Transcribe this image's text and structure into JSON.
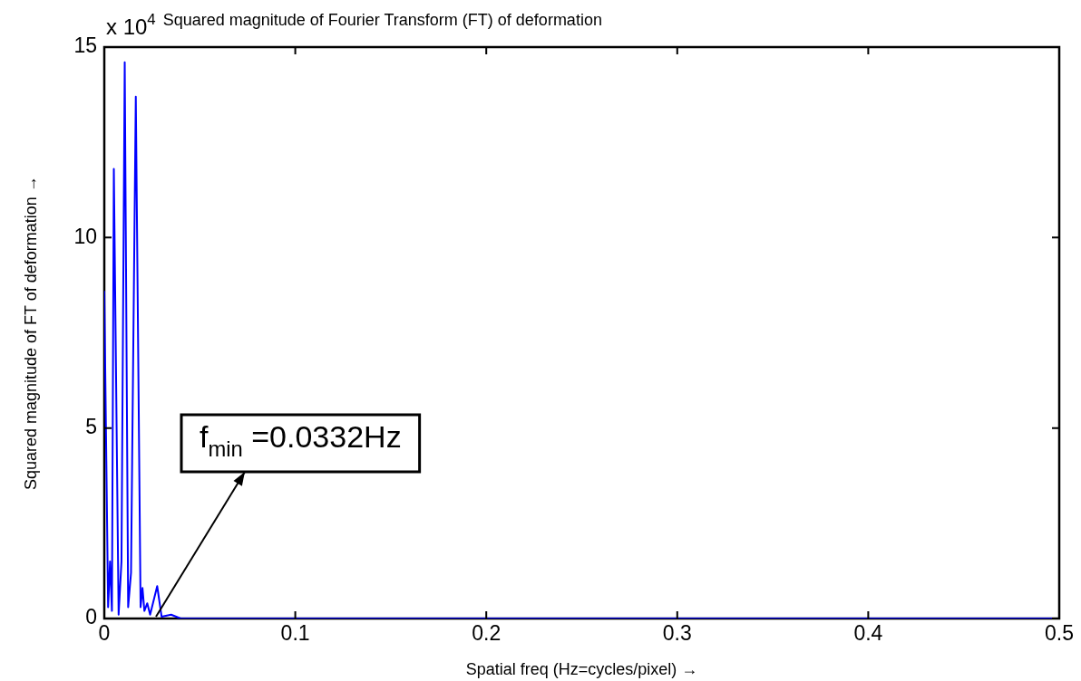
{
  "chart_data": {
    "type": "line",
    "title": "Squared magnitude of Fourier Transform (FT) of deformation",
    "xlabel": "Spatial freq (Hz=cycles/pixel) →",
    "ylabel": "Squared magnitude of FT of deformation →",
    "annotations": [
      "x 10$^{4}$",
      "f$_{min}$ =0.0332Hz"
    ],
    "x": [
      0,
      0.002,
      0.003,
      0.004,
      0.005,
      0.0075,
      0.009,
      0.0107,
      0.0125,
      0.014,
      0.0165,
      0.019,
      0.02,
      0.021,
      0.0225,
      0.024,
      0.0277,
      0.03,
      0.035,
      0.04,
      0.5
    ],
    "series": [
      {
        "color": "#0000ff",
        "values": [
          8.6,
          0.3,
          1.5,
          0.2,
          11.8,
          0.1,
          1.5,
          14.6,
          0.3,
          1.2,
          13.7,
          0.3,
          0.8,
          0.2,
          0.4,
          0.1,
          0.85,
          0.05,
          0.1,
          0,
          0
        ]
      }
    ],
    "xlim": [
      0,
      0.5
    ],
    "xticks": [
      0,
      0.1,
      0.2,
      0.3,
      0.4,
      0.5
    ],
    "ylim": [
      0,
      15
    ],
    "yticks": [
      0,
      5,
      10,
      15
    ],
    "grid": false,
    "legend": false,
    "marker": "none",
    "line_style": "solid"
  }
}
